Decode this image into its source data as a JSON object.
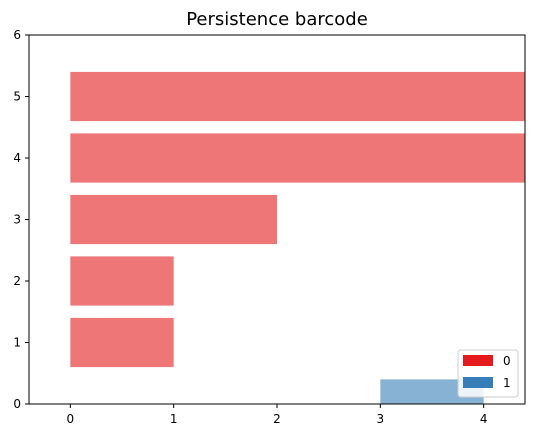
{
  "chart_data": {
    "type": "bar",
    "orientation": "horizontal",
    "title": "Persistence barcode",
    "xlabel": "",
    "ylabel": "",
    "xlim": [
      -0.4,
      4.4
    ],
    "ylim": [
      0,
      6
    ],
    "xticks": [
      "0",
      "1",
      "2",
      "3",
      "4"
    ],
    "yticks": [
      "0",
      "1",
      "2",
      "3",
      "4",
      "5",
      "6"
    ],
    "grid": false,
    "legend_placement": "bottom-right",
    "legend": [
      {
        "label": "0",
        "color": "#e41a1c"
      },
      {
        "label": "1",
        "color": "#377eb8"
      }
    ],
    "bars": [
      {
        "dimension": "1",
        "birth": 3,
        "death": 4,
        "y": 0,
        "color": "#377eb8"
      },
      {
        "dimension": "0",
        "birth": 0,
        "death": 1,
        "y": 1,
        "color": "#e41a1c"
      },
      {
        "dimension": "0",
        "birth": 0,
        "death": 1,
        "y": 2,
        "color": "#e41a1c"
      },
      {
        "dimension": "0",
        "birth": 0,
        "death": 2,
        "y": 3,
        "color": "#e41a1c"
      },
      {
        "dimension": "0",
        "birth": 0,
        "death": "inf",
        "y": 4,
        "color": "#e41a1c"
      },
      {
        "dimension": "0",
        "birth": 0,
        "death": "inf",
        "y": 5,
        "color": "#e41a1c"
      }
    ]
  }
}
